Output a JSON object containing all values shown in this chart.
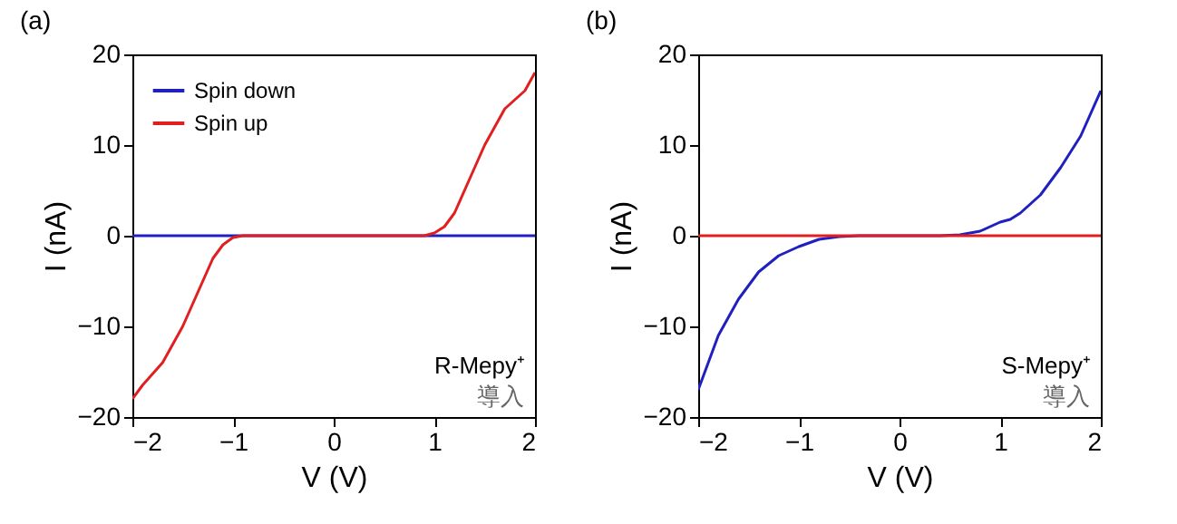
{
  "chart_data": [
    {
      "type": "line",
      "title": "(a)",
      "xlabel": "V (V)",
      "ylabel": "I (nA)",
      "xlim": [
        -2,
        2
      ],
      "ylim": [
        -20,
        20
      ],
      "xticks": [
        -2,
        -1,
        0,
        1,
        2
      ],
      "yticks": [
        -20,
        -10,
        0,
        10,
        20
      ],
      "legend": "top left",
      "annotations": [
        "R-Mepy⁺",
        "導入"
      ],
      "series": [
        {
          "name": "Spin down",
          "color": "#2020c0",
          "x": [
            -2,
            2
          ],
          "values": [
            0,
            0
          ]
        },
        {
          "name": "Spin up",
          "color": "#e02020",
          "x": [
            -2,
            -1.9,
            -1.7,
            -1.5,
            -1.3,
            -1.2,
            -1.1,
            -1,
            -0.9,
            0.9,
            1,
            1.1,
            1.2,
            1.3,
            1.5,
            1.7,
            1.9,
            2
          ],
          "values": [
            -18,
            -16.5,
            -14,
            -10,
            -5,
            -2.5,
            -1,
            -0.2,
            0,
            0,
            0.3,
            1,
            2.5,
            5,
            10,
            14,
            16,
            18
          ]
        }
      ]
    },
    {
      "type": "line",
      "title": "(b)",
      "xlabel": "V (V)",
      "ylabel": "I (nA)",
      "xlim": [
        -2,
        2
      ],
      "ylim": [
        -20,
        20
      ],
      "xticks": [
        -2,
        -1,
        0,
        1,
        2
      ],
      "yticks": [
        -20,
        -10,
        0,
        10,
        20
      ],
      "annotations": [
        "S-Mepy⁺",
        "導入"
      ],
      "series": [
        {
          "color": "#2020c0",
          "x": [
            -2,
            -1.9,
            -1.8,
            -1.6,
            -1.4,
            -1.2,
            -1,
            -0.8,
            -0.6,
            -0.4,
            0.4,
            0.6,
            0.8,
            1,
            1.1,
            1.2,
            1.4,
            1.6,
            1.8,
            2
          ],
          "values": [
            -17,
            -14,
            -11,
            -7,
            -4,
            -2.2,
            -1.2,
            -0.4,
            -0.1,
            0,
            0,
            0.1,
            0.5,
            1.5,
            1.8,
            2.5,
            4.5,
            7.5,
            11,
            16
          ]
        },
        {
          "color": "#e02020",
          "x": [
            -2,
            2
          ],
          "values": [
            0,
            0
          ]
        }
      ]
    }
  ]
}
